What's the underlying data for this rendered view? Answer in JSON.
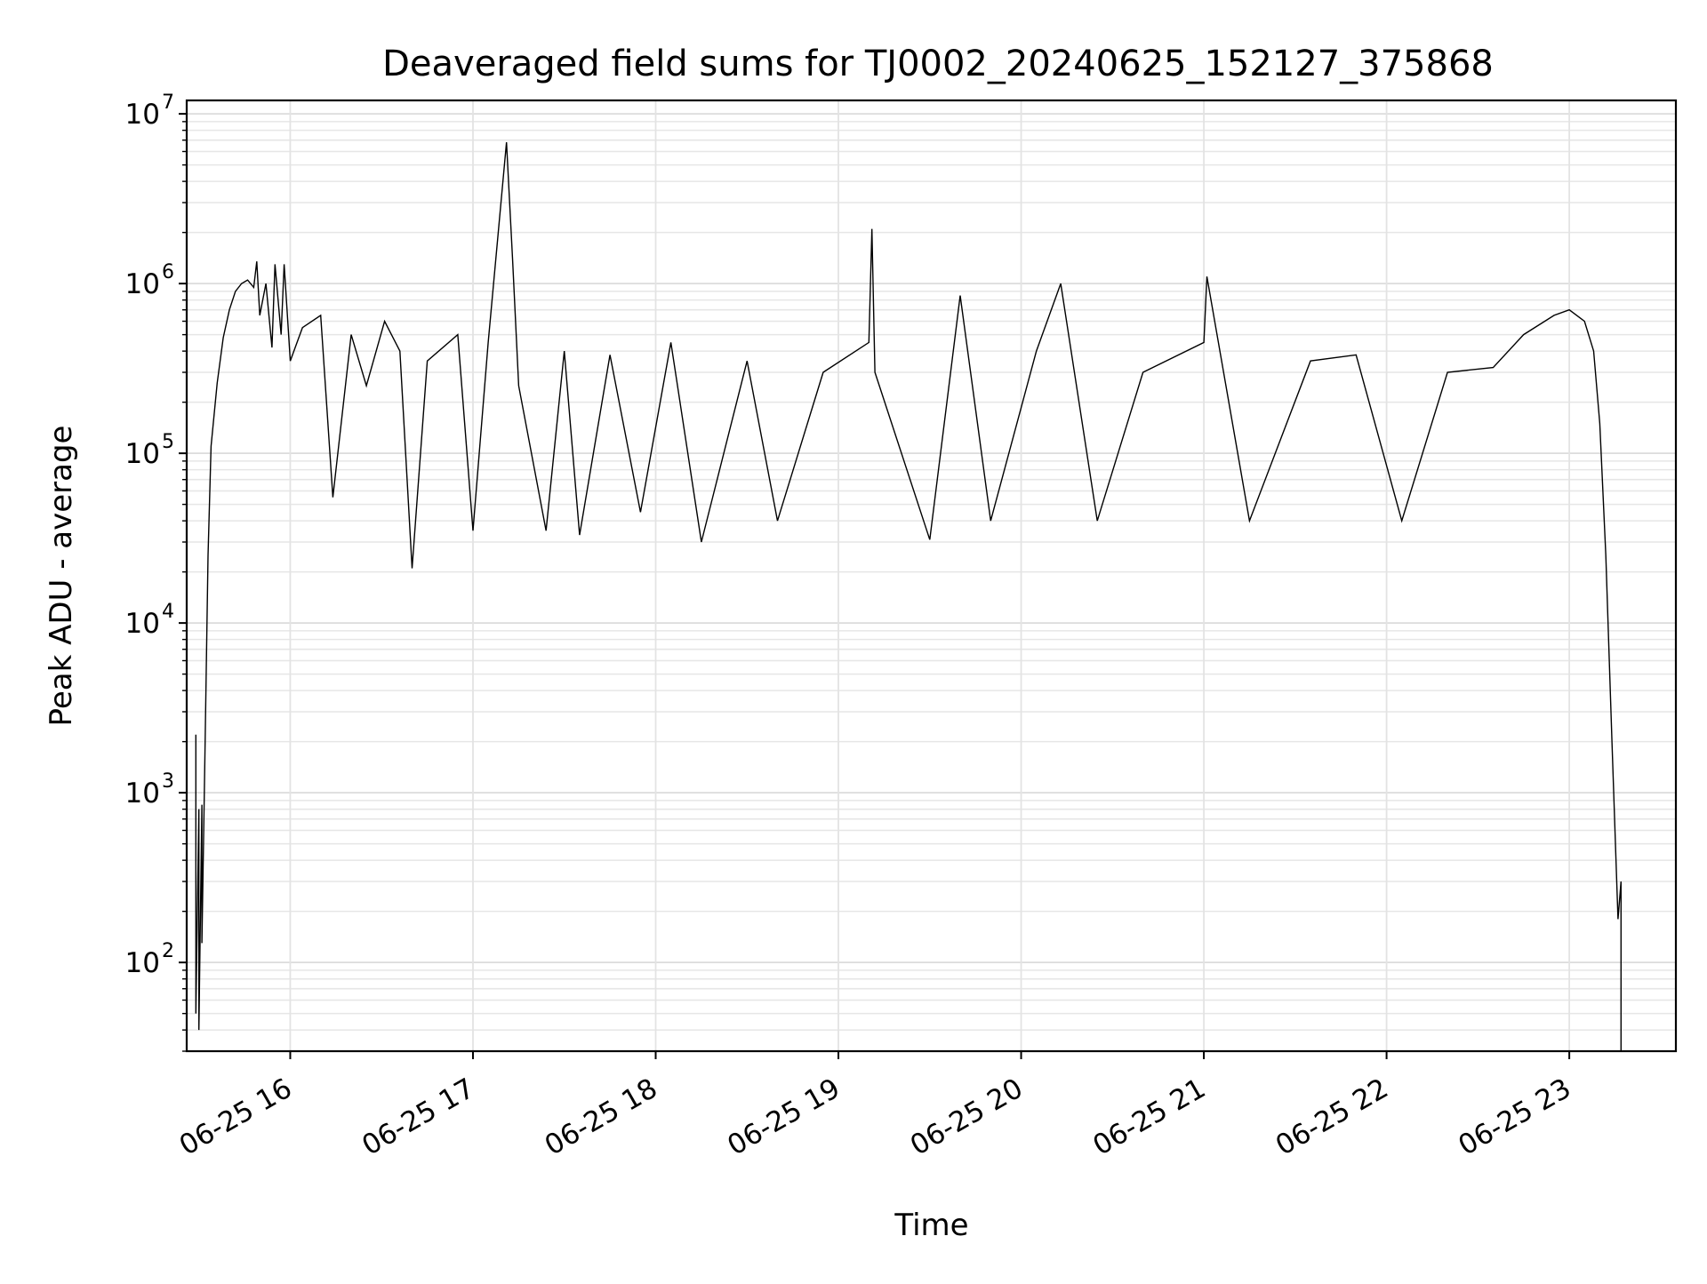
{
  "chart_data": {
    "type": "line",
    "title": "Deaveraged field sums for TJ0002_20240625_152127_375868",
    "xlabel": "Time",
    "ylabel": "Peak ADU - average",
    "y_scale": "log",
    "ylim": [
      30,
      12000000
    ],
    "xlim": [
      "2024-06-25 15:26",
      "2024-06-25 23:35"
    ],
    "grid": "major and minor",
    "x_ticks": [
      {
        "value": "2024-06-25 16:00",
        "label": "06-25 16"
      },
      {
        "value": "2024-06-25 17:00",
        "label": "06-25 17"
      },
      {
        "value": "2024-06-25 18:00",
        "label": "06-25 18"
      },
      {
        "value": "2024-06-25 19:00",
        "label": "06-25 19"
      },
      {
        "value": "2024-06-25 20:00",
        "label": "06-25 20"
      },
      {
        "value": "2024-06-25 21:00",
        "label": "06-25 21"
      },
      {
        "value": "2024-06-25 22:00",
        "label": "06-25 22"
      },
      {
        "value": "2024-06-25 23:00",
        "label": "06-25 23"
      }
    ],
    "y_ticks": [
      {
        "value": 100,
        "base": "10",
        "exp": "2"
      },
      {
        "value": 1000,
        "base": "10",
        "exp": "3"
      },
      {
        "value": 10000,
        "base": "10",
        "exp": "4"
      },
      {
        "value": 100000,
        "base": "10",
        "exp": "5"
      },
      {
        "value": 1000000,
        "base": "10",
        "exp": "6"
      },
      {
        "value": 10000000,
        "base": "10",
        "exp": "7"
      }
    ],
    "series": [
      {
        "color": "#000000",
        "points": [
          [
            "2024-06-25 15:29",
            2200
          ],
          [
            "2024-06-25 15:29",
            50
          ],
          [
            "2024-06-25 15:30",
            800
          ],
          [
            "2024-06-25 15:30",
            40
          ],
          [
            "2024-06-25 15:31",
            850
          ],
          [
            "2024-06-25 15:31",
            130
          ],
          [
            "2024-06-25 15:32",
            1800
          ],
          [
            "2024-06-25 15:33",
            25000
          ],
          [
            "2024-06-25 15:34",
            110000
          ],
          [
            "2024-06-25 15:36",
            260000
          ],
          [
            "2024-06-25 15:38",
            480000
          ],
          [
            "2024-06-25 15:40",
            700000
          ],
          [
            "2024-06-25 15:42",
            900000
          ],
          [
            "2024-06-25 15:44",
            1000000
          ],
          [
            "2024-06-25 15:46",
            1050000
          ],
          [
            "2024-06-25 15:48",
            950000
          ],
          [
            "2024-06-25 15:49",
            1350000
          ],
          [
            "2024-06-25 15:50",
            650000
          ],
          [
            "2024-06-25 15:52",
            1000000
          ],
          [
            "2024-06-25 15:54",
            420000
          ],
          [
            "2024-06-25 15:55",
            1300000
          ],
          [
            "2024-06-25 15:57",
            500000
          ],
          [
            "2024-06-25 15:58",
            1300000
          ],
          [
            "2024-06-25 16:00",
            350000
          ],
          [
            "2024-06-25 16:04",
            550000
          ],
          [
            "2024-06-25 16:10",
            650000
          ],
          [
            "2024-06-25 16:14",
            55000
          ],
          [
            "2024-06-25 16:20",
            500000
          ],
          [
            "2024-06-25 16:25",
            250000
          ],
          [
            "2024-06-25 16:31",
            600000
          ],
          [
            "2024-06-25 16:36",
            400000
          ],
          [
            "2024-06-25 16:40",
            21000
          ],
          [
            "2024-06-25 16:45",
            350000
          ],
          [
            "2024-06-25 16:55",
            500000
          ],
          [
            "2024-06-25 17:00",
            35000
          ],
          [
            "2024-06-25 17:05",
            450000
          ],
          [
            "2024-06-25 17:11",
            6800000
          ],
          [
            "2024-06-25 17:13",
            1400000
          ],
          [
            "2024-06-25 17:15",
            250000
          ],
          [
            "2024-06-25 17:24",
            35000
          ],
          [
            "2024-06-25 17:30",
            400000
          ],
          [
            "2024-06-25 17:35",
            33000
          ],
          [
            "2024-06-25 17:45",
            380000
          ],
          [
            "2024-06-25 17:55",
            45000
          ],
          [
            "2024-06-25 18:05",
            450000
          ],
          [
            "2024-06-25 18:15",
            30000
          ],
          [
            "2024-06-25 18:30",
            350000
          ],
          [
            "2024-06-25 18:40",
            40000
          ],
          [
            "2024-06-25 18:55",
            300000
          ],
          [
            "2024-06-25 19:10",
            450000
          ],
          [
            "2024-06-25 19:11",
            2100000
          ],
          [
            "2024-06-25 19:12",
            300000
          ],
          [
            "2024-06-25 19:30",
            31000
          ],
          [
            "2024-06-25 19:40",
            850000
          ],
          [
            "2024-06-25 19:50",
            40000
          ],
          [
            "2024-06-25 20:05",
            400000
          ],
          [
            "2024-06-25 20:13",
            1000000
          ],
          [
            "2024-06-25 20:25",
            40000
          ],
          [
            "2024-06-25 20:40",
            300000
          ],
          [
            "2024-06-25 21:00",
            450000
          ],
          [
            "2024-06-25 21:01",
            1100000
          ],
          [
            "2024-06-25 21:15",
            40000
          ],
          [
            "2024-06-25 21:35",
            350000
          ],
          [
            "2024-06-25 21:50",
            380000
          ],
          [
            "2024-06-25 22:05",
            40000
          ],
          [
            "2024-06-25 22:20",
            300000
          ],
          [
            "2024-06-25 22:35",
            320000
          ],
          [
            "2024-06-25 22:45",
            500000
          ],
          [
            "2024-06-25 22:55",
            650000
          ],
          [
            "2024-06-25 23:00",
            700000
          ],
          [
            "2024-06-25 23:05",
            600000
          ],
          [
            "2024-06-25 23:08",
            400000
          ],
          [
            "2024-06-25 23:10",
            150000
          ],
          [
            "2024-06-25 23:12",
            25000
          ],
          [
            "2024-06-25 23:14",
            2000
          ],
          [
            "2024-06-25 23:16",
            180
          ],
          [
            "2024-06-25 23:17",
            300
          ],
          [
            "2024-06-25 23:17",
            30
          ]
        ]
      }
    ]
  }
}
